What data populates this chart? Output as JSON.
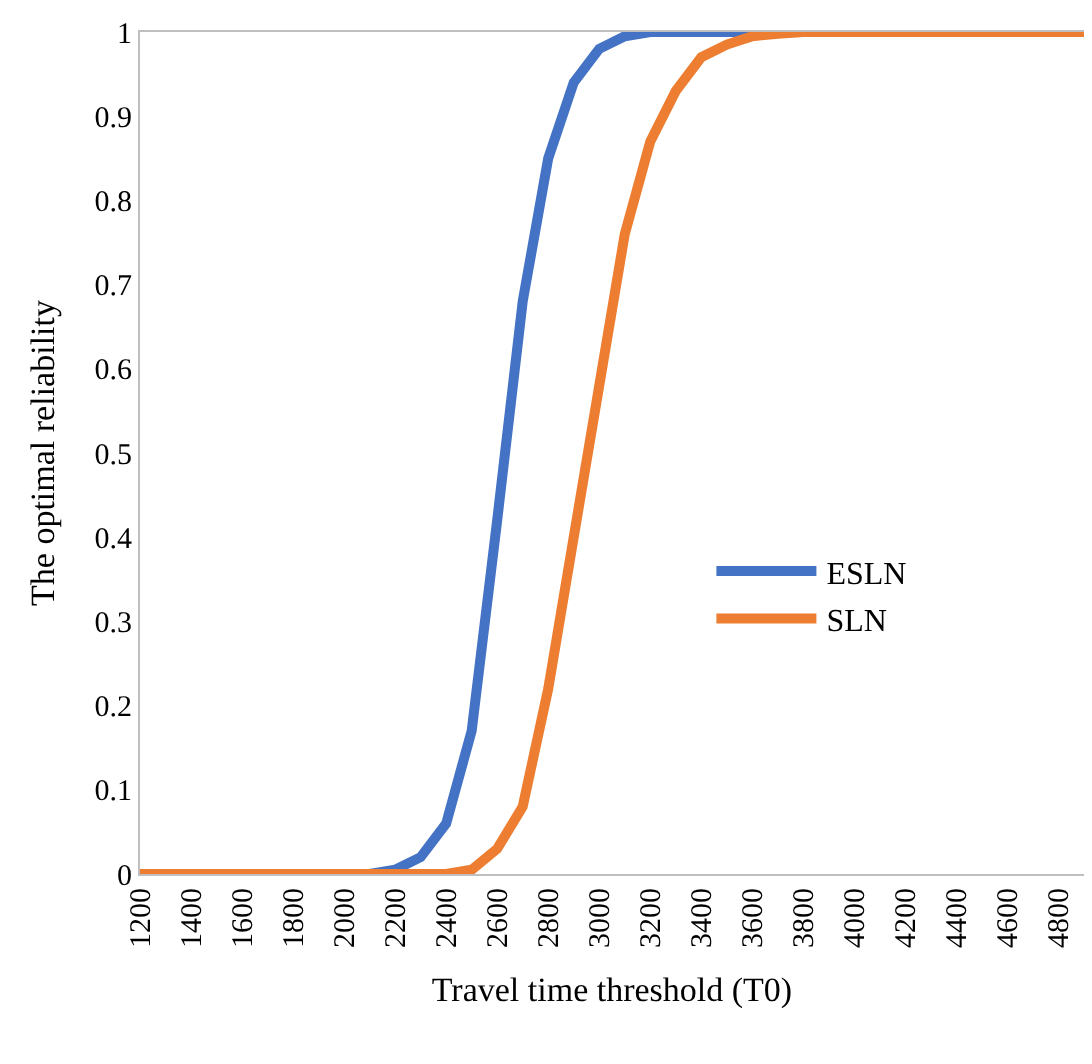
{
  "chart_data": {
    "type": "line",
    "xlabel": "Travel time threshold (T0)",
    "ylabel": "The optimal reliability",
    "x": [
      1200,
      1300,
      1400,
      1500,
      1600,
      1700,
      1800,
      1900,
      2000,
      2100,
      2200,
      2300,
      2400,
      2500,
      2600,
      2700,
      2800,
      2900,
      3000,
      3100,
      3200,
      3300,
      3400,
      3500,
      3600,
      3700,
      3800,
      3900,
      4000,
      4100,
      4200,
      4300,
      4400,
      4500,
      4600,
      4700,
      4800,
      4900
    ],
    "series": [
      {
        "name": "ESLN",
        "color": "#4472c4",
        "values": [
          null,
          null,
          null,
          null,
          null,
          null,
          null,
          null,
          null,
          0,
          0.005,
          0.02,
          0.06,
          0.17,
          0.42,
          0.68,
          0.85,
          0.94,
          0.98,
          0.995,
          1,
          1,
          1,
          1,
          1,
          null,
          null,
          null,
          null,
          null,
          null,
          null,
          null,
          null,
          null,
          null,
          null,
          null
        ]
      },
      {
        "name": "SLN",
        "color": "#ed7d31",
        "values": [
          0,
          0,
          0,
          0,
          0,
          0,
          0,
          0,
          0,
          0,
          0,
          0,
          0,
          0.005,
          0.03,
          0.08,
          0.22,
          0.4,
          0.58,
          0.76,
          0.87,
          0.93,
          0.97,
          0.985,
          0.995,
          0.998,
          1,
          1,
          1,
          1,
          1,
          1,
          1,
          1,
          1,
          1,
          1,
          1
        ]
      }
    ],
    "xlim": [
      1200,
      4900
    ],
    "xticks": [
      1200,
      1400,
      1600,
      1800,
      2000,
      2200,
      2400,
      2600,
      2800,
      3000,
      3200,
      3400,
      3600,
      3800,
      4000,
      4200,
      4400,
      4600,
      4800
    ],
    "ylim": [
      0,
      1
    ],
    "yticks": [
      0,
      0.1,
      0.2,
      0.3,
      0.4,
      0.5,
      0.6,
      0.7,
      0.8,
      0.9,
      1
    ],
    "legend": "right",
    "marker": "none",
    "line_style": "solid"
  }
}
